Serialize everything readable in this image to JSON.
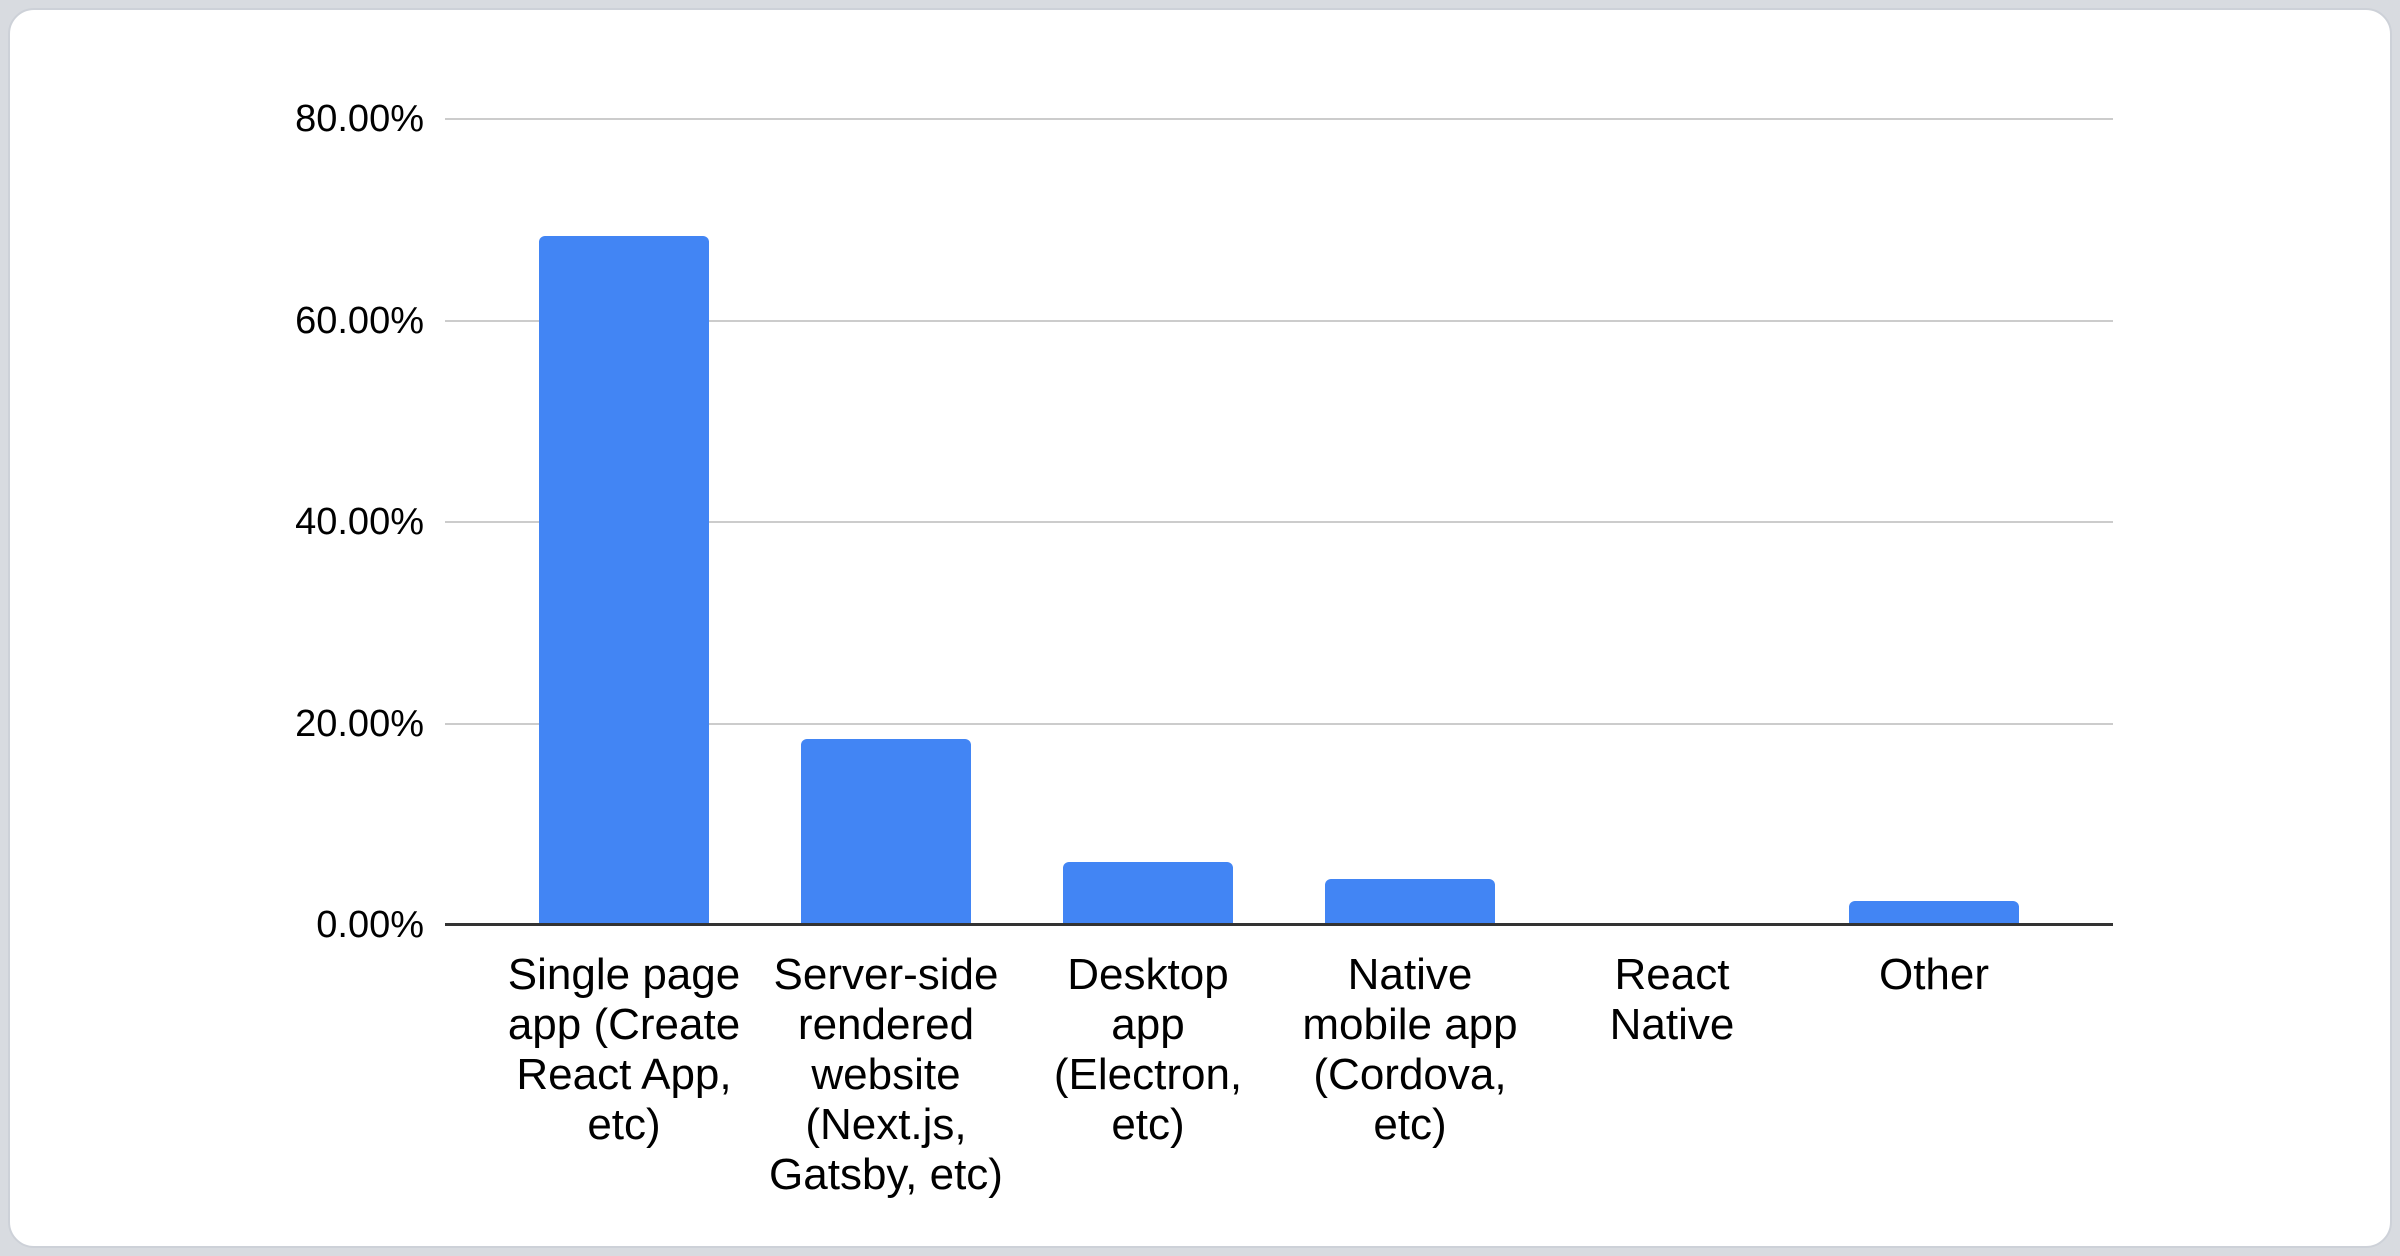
{
  "colors": {
    "bar": "#4285f4",
    "gridline": "#cccccc",
    "axis_line": "#333333",
    "card_background": "#ffffff",
    "page_background": "#d8dbe0",
    "text": "#000000"
  },
  "chart_data": {
    "type": "bar",
    "title": "",
    "xlabel": "",
    "ylabel": "",
    "categories": [
      "Single page app (Create React App, etc)",
      "Server-side rendered website (Next.js, Gatsby, etc)",
      "Desktop app (Electron, etc)",
      "Native mobile app (Cordova, etc)",
      "React Native",
      "Other"
    ],
    "categories_wrapped": [
      "Single page\napp (Create\nReact App,\netc)",
      "Server-side\nrendered\nwebsite\n(Next.js,\nGatsby, etc)",
      "Desktop\napp\n(Electron,\netc)",
      "Native\nmobile app\n(Cordova,\netc)",
      "React\nNative",
      "Other"
    ],
    "values": [
      68.4,
      18.5,
      6.3,
      4.6,
      0,
      2.4
    ],
    "value_unit": "%",
    "ylim": [
      0,
      80
    ],
    "y_ticks": [
      {
        "label": "80.00%",
        "value": 80
      },
      {
        "label": "60.00%",
        "value": 60
      },
      {
        "label": "40.00%",
        "value": 40
      },
      {
        "label": "20.00%",
        "value": 20
      },
      {
        "label": "0.00%",
        "value": 0
      }
    ],
    "grid": true,
    "legend_position": "none"
  }
}
